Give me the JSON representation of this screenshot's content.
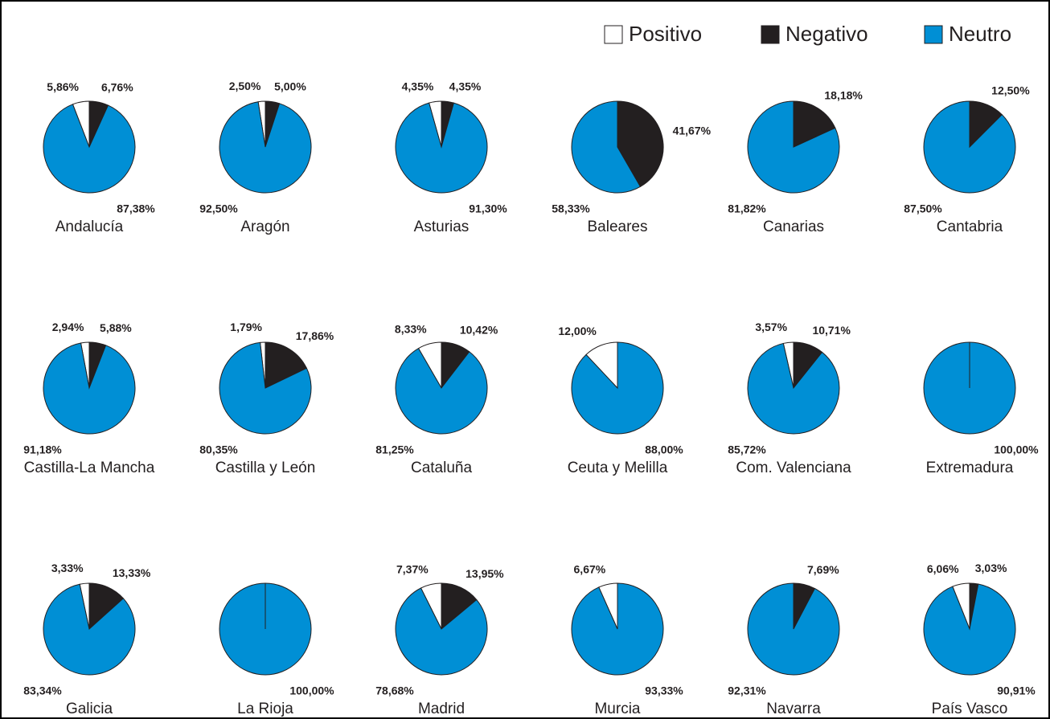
{
  "legend": {
    "names": [
      "Positivo",
      "Negativo",
      "Neutro"
    ],
    "colors": [
      "#ffffff",
      "#231f20",
      "#008fd5"
    ],
    "corner": "top-right"
  },
  "chart_data": [
    {
      "type": "pie",
      "title": "Andalucía",
      "values": [
        5.86,
        6.76,
        87.38
      ],
      "value_labels": [
        "5,86%",
        "6,76%",
        "87,38%"
      ]
    },
    {
      "type": "pie",
      "title": "Aragón",
      "values": [
        2.5,
        5.0,
        92.5
      ],
      "value_labels": [
        "2,50%",
        "5,00%",
        "92,50%"
      ]
    },
    {
      "type": "pie",
      "title": "Asturias",
      "values": [
        4.35,
        4.35,
        91.3
      ],
      "value_labels": [
        "4,35%",
        "4,35%",
        "91,30%"
      ]
    },
    {
      "type": "pie",
      "title": "Baleares",
      "values": [
        0,
        41.67,
        58.33
      ],
      "value_labels": [
        null,
        "41,67%",
        "58,33%"
      ]
    },
    {
      "type": "pie",
      "title": "Canarias",
      "values": [
        0,
        18.18,
        81.82
      ],
      "value_labels": [
        null,
        "18,18%",
        "81,82%"
      ]
    },
    {
      "type": "pie",
      "title": "Cantabria",
      "values": [
        0,
        12.5,
        87.5
      ],
      "value_labels": [
        null,
        "12,50%",
        "87,50%"
      ]
    },
    {
      "type": "pie",
      "title": "Castilla-La Mancha",
      "values": [
        2.94,
        5.88,
        91.18
      ],
      "value_labels": [
        "2,94%",
        "5,88%",
        "91,18%"
      ]
    },
    {
      "type": "pie",
      "title": "Castilla y León",
      "values": [
        1.79,
        17.86,
        80.35
      ],
      "value_labels": [
        "1,79%",
        "17,86%",
        "80,35%"
      ]
    },
    {
      "type": "pie",
      "title": "Cataluña",
      "values": [
        8.33,
        10.42,
        81.25
      ],
      "value_labels": [
        "8,33%",
        "10,42%",
        "81,25%"
      ]
    },
    {
      "type": "pie",
      "title": "Ceuta y Melilla",
      "values": [
        12.0,
        0,
        88.0
      ],
      "value_labels": [
        "12,00%",
        null,
        "88,00%"
      ]
    },
    {
      "type": "pie",
      "title": "Com. Valenciana",
      "values": [
        3.57,
        10.71,
        85.72
      ],
      "value_labels": [
        "3,57%",
        "10,71%",
        "85,72%"
      ]
    },
    {
      "type": "pie",
      "title": "Extremadura",
      "values": [
        0,
        0,
        100
      ],
      "value_labels": [
        null,
        null,
        "100,00%"
      ]
    },
    {
      "type": "pie",
      "title": "Galicia",
      "values": [
        3.33,
        13.33,
        83.34
      ],
      "value_labels": [
        "3,33%",
        "13,33%",
        "83,34%"
      ]
    },
    {
      "type": "pie",
      "title": "La Rioja",
      "values": [
        0,
        0,
        100
      ],
      "value_labels": [
        null,
        null,
        "100,00%"
      ]
    },
    {
      "type": "pie",
      "title": "Madrid",
      "values": [
        7.37,
        13.95,
        78.68
      ],
      "value_labels": [
        "7,37%",
        "13,95%",
        "78,68%"
      ]
    },
    {
      "type": "pie",
      "title": "Murcia",
      "values": [
        6.67,
        0,
        93.33
      ],
      "value_labels": [
        "6,67%",
        null,
        "93,33%"
      ]
    },
    {
      "type": "pie",
      "title": "Navarra",
      "values": [
        0,
        7.69,
        92.31
      ],
      "value_labels": [
        null,
        "7,69%",
        "92,31%"
      ]
    },
    {
      "type": "pie",
      "title": "País Vasco",
      "values": [
        6.06,
        3.03,
        90.91
      ],
      "value_labels": [
        "6,06%",
        "3,03%",
        "90,91%"
      ]
    }
  ]
}
